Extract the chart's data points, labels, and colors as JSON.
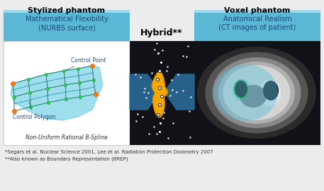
{
  "bg_color": "#ececec",
  "title_stylized": "Stylized phantom",
  "title_voxel": "Voxel phantom",
  "title_hybrid": "Hybrid**",
  "subtitle_stylized": "Mathematical Flexibility\n(NURBS surface)",
  "subtitle_voxel": "Anatomical Realism\n(CT images of patient)",
  "label_control_point": "Control Point",
  "label_control_polygon": "Control Polygon",
  "label_nurbs": "Non-Uniform Rational B-Spline",
  "footnote1": "*Segars et al. Nuclear Science 2001, Lee et al. Radiation Protection Dosimetry 2007",
  "footnote2": "**Also known as Boundary Representation (BREP)",
  "light_blue": "#5bb8d4",
  "lighter_blue": "#8dcfe8",
  "bg_blue": "#a8d8ea",
  "arrow_color": "#2a6a96",
  "title_fontsize": 8,
  "subtitle_fontsize": 7,
  "label_fontsize": 5.5,
  "footnote_fontsize": 5
}
